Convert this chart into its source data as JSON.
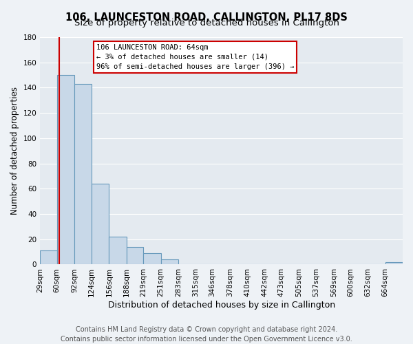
{
  "title": "106, LAUNCESTON ROAD, CALLINGTON, PL17 8DS",
  "subtitle": "Size of property relative to detached houses in Callington",
  "xlabel": "Distribution of detached houses by size in Callington",
  "ylabel": "Number of detached properties",
  "bin_labels": [
    "29sqm",
    "60sqm",
    "92sqm",
    "124sqm",
    "156sqm",
    "188sqm",
    "219sqm",
    "251sqm",
    "283sqm",
    "315sqm",
    "346sqm",
    "378sqm",
    "410sqm",
    "442sqm",
    "473sqm",
    "505sqm",
    "537sqm",
    "569sqm",
    "600sqm",
    "632sqm",
    "664sqm"
  ],
  "bin_edges": [
    29,
    60,
    92,
    124,
    156,
    188,
    219,
    251,
    283,
    315,
    346,
    378,
    410,
    442,
    473,
    505,
    537,
    569,
    600,
    632,
    664
  ],
  "bar_heights": [
    11,
    150,
    143,
    64,
    22,
    14,
    9,
    4,
    0,
    0,
    0,
    0,
    0,
    0,
    0,
    0,
    0,
    0,
    0,
    0,
    2
  ],
  "bar_color": "#c8d8e8",
  "bar_edgecolor": "#6699bb",
  "ylim": [
    0,
    180
  ],
  "yticks": [
    0,
    20,
    40,
    60,
    80,
    100,
    120,
    140,
    160,
    180
  ],
  "red_line_x": 64,
  "annotation_text_line1": "106 LAUNCESTON ROAD: 64sqm",
  "annotation_text_line2": "← 3% of detached houses are smaller (14)",
  "annotation_text_line3": "96% of semi-detached houses are larger (396) →",
  "footer_line1": "Contains HM Land Registry data © Crown copyright and database right 2024.",
  "footer_line2": "Contains public sector information licensed under the Open Government Licence v3.0.",
  "background_color": "#eef2f6",
  "plot_bg_color": "#e4eaf0",
  "grid_color": "#ffffff",
  "title_fontsize": 10.5,
  "subtitle_fontsize": 9.5,
  "xlabel_fontsize": 9,
  "ylabel_fontsize": 8.5,
  "tick_fontsize": 7.5,
  "footer_fontsize": 7
}
